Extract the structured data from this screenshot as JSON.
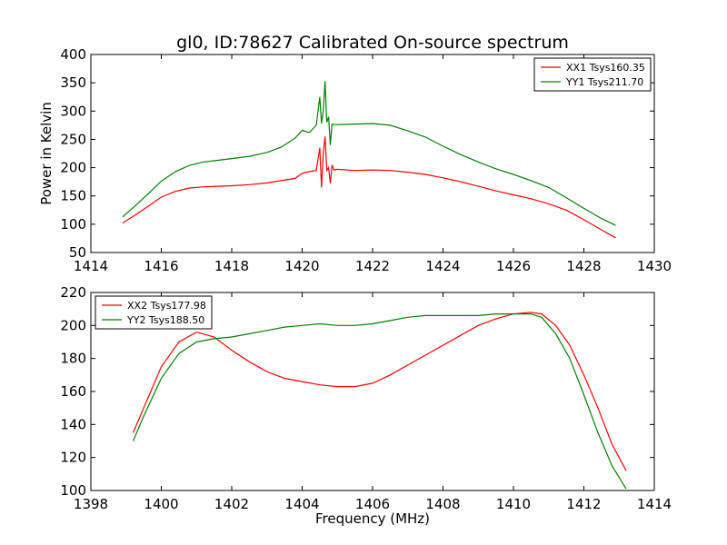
{
  "figure": {
    "title": "gl0, ID:78627 Calibrated On-source spectrum",
    "xlabel": "Frequency (MHz)"
  },
  "chart_data": [
    {
      "type": "line",
      "title": "gl0, ID:78627 Calibrated On-source spectrum",
      "xlabel": "",
      "ylabel": "Power in Kelvin",
      "xlim": [
        1414,
        1430
      ],
      "ylim": [
        50,
        400
      ],
      "xticks": [
        1414,
        1416,
        1418,
        1420,
        1422,
        1424,
        1426,
        1428,
        1430
      ],
      "yticks": [
        50,
        100,
        150,
        200,
        250,
        300,
        350,
        400
      ],
      "grid": false,
      "legend_position": "top-right",
      "series": [
        {
          "name": "XX1 Tsys160.35",
          "color": "#ff0000",
          "x": [
            1414.9,
            1415.3,
            1415.7,
            1416.0,
            1416.4,
            1416.8,
            1417.2,
            1417.6,
            1418.0,
            1418.5,
            1419.0,
            1419.4,
            1419.8,
            1420.0,
            1420.2,
            1420.4,
            1420.5,
            1420.55,
            1420.6,
            1420.65,
            1420.7,
            1420.75,
            1420.8,
            1420.85,
            1420.9,
            1421.0,
            1421.5,
            1422.0,
            1422.5,
            1423.0,
            1423.5,
            1424.0,
            1424.5,
            1425.0,
            1425.5,
            1426.0,
            1426.5,
            1427.0,
            1427.5,
            1428.0,
            1428.5,
            1428.9
          ],
          "y": [
            102,
            118,
            135,
            148,
            158,
            164,
            166,
            167,
            168,
            170,
            173,
            177,
            181,
            190,
            193,
            195,
            235,
            165,
            225,
            255,
            195,
            200,
            172,
            205,
            196,
            197,
            195,
            196,
            195,
            192,
            188,
            182,
            175,
            167,
            159,
            152,
            145,
            136,
            125,
            108,
            90,
            76
          ]
        },
        {
          "name": "YY1 Tsys211.70",
          "color": "#008000",
          "x": [
            1414.9,
            1415.3,
            1415.7,
            1416.0,
            1416.4,
            1416.8,
            1417.2,
            1417.6,
            1418.0,
            1418.5,
            1419.0,
            1419.4,
            1419.8,
            1420.0,
            1420.2,
            1420.4,
            1420.5,
            1420.55,
            1420.6,
            1420.65,
            1420.7,
            1420.75,
            1420.8,
            1420.85,
            1420.9,
            1421.0,
            1421.5,
            1422.0,
            1422.5,
            1423.0,
            1423.5,
            1424.0,
            1424.5,
            1425.0,
            1425.5,
            1426.0,
            1426.5,
            1427.0,
            1427.5,
            1428.0,
            1428.5,
            1428.9
          ],
          "y": [
            113,
            135,
            158,
            176,
            193,
            204,
            210,
            213,
            216,
            220,
            227,
            236,
            252,
            266,
            262,
            275,
            325,
            278,
            300,
            353,
            280,
            290,
            240,
            277,
            276,
            276,
            277,
            278,
            275,
            265,
            254,
            238,
            223,
            210,
            198,
            188,
            177,
            165,
            147,
            128,
            110,
            98
          ]
        }
      ]
    },
    {
      "type": "line",
      "title": "",
      "xlabel": "Frequency (MHz)",
      "ylabel": "",
      "xlim": [
        1398,
        1414
      ],
      "ylim": [
        100,
        220
      ],
      "xticks": [
        1398,
        1400,
        1402,
        1404,
        1406,
        1408,
        1410,
        1412,
        1414
      ],
      "yticks": [
        100,
        120,
        140,
        160,
        180,
        200,
        220
      ],
      "grid": false,
      "legend_position": "top-left",
      "series": [
        {
          "name": "XX2 Tsys177.98",
          "color": "#ff0000",
          "x": [
            1399.2,
            1399.5,
            1400.0,
            1400.5,
            1401.0,
            1401.5,
            1402.0,
            1402.5,
            1403.0,
            1403.5,
            1404.0,
            1404.5,
            1405.0,
            1405.5,
            1406.0,
            1406.5,
            1407.0,
            1407.5,
            1408.0,
            1408.5,
            1409.0,
            1409.5,
            1410.0,
            1410.5,
            1410.8,
            1411.2,
            1411.6,
            1412.0,
            1412.4,
            1412.8,
            1413.2
          ],
          "y": [
            135,
            150,
            175,
            190,
            196,
            193,
            185,
            178,
            172,
            168,
            166,
            164,
            163,
            163,
            165,
            170,
            176,
            182,
            188,
            194,
            200,
            204,
            207,
            208,
            207,
            200,
            188,
            170,
            150,
            128,
            112
          ]
        },
        {
          "name": "YY2 Tsys188.50",
          "color": "#008000",
          "x": [
            1399.2,
            1399.5,
            1400.0,
            1400.5,
            1401.0,
            1401.5,
            1402.0,
            1402.5,
            1403.0,
            1403.5,
            1404.0,
            1404.5,
            1405.0,
            1405.5,
            1406.0,
            1406.5,
            1407.0,
            1407.5,
            1408.0,
            1408.5,
            1409.0,
            1409.5,
            1410.0,
            1410.5,
            1410.8,
            1411.2,
            1411.6,
            1412.0,
            1412.4,
            1412.8,
            1413.2
          ],
          "y": [
            130,
            145,
            168,
            183,
            190,
            192,
            193,
            195,
            197,
            199,
            200,
            201,
            200,
            200,
            201,
            203,
            205,
            206,
            206,
            206,
            206,
            207,
            207,
            207,
            205,
            195,
            180,
            158,
            135,
            115,
            101
          ]
        }
      ]
    }
  ]
}
